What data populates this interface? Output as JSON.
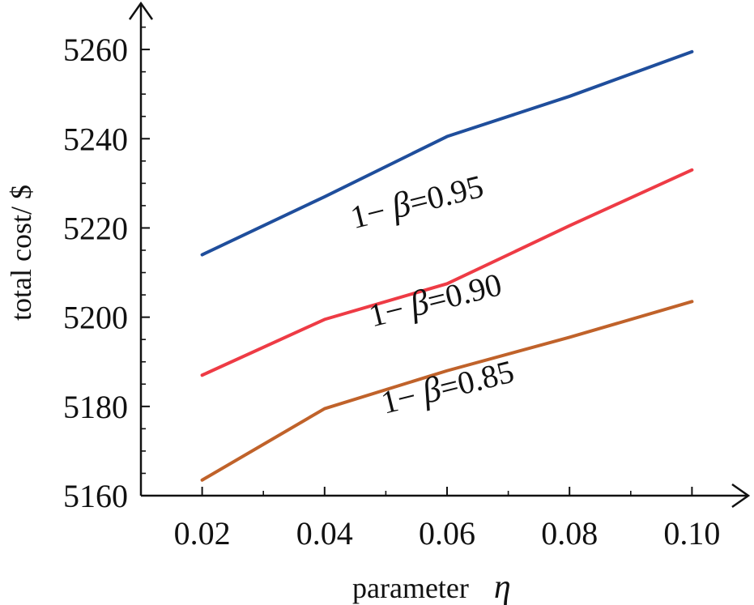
{
  "chart_data": {
    "type": "line",
    "title": "",
    "xlabel": "parameter",
    "xlabel_symbol": "η",
    "ylabel": "total cost/ $",
    "x": [
      0.02,
      0.04,
      0.06,
      0.08,
      0.1
    ],
    "x_tick_labels": [
      "0.02",
      "0.04",
      "0.06",
      "0.08",
      "0.10"
    ],
    "xlim": [
      0.01,
      0.11
    ],
    "ylim": [
      5160,
      5270
    ],
    "y_ticks": [
      5160,
      5180,
      5200,
      5220,
      5240,
      5260
    ],
    "y_tick_labels": [
      "5160",
      "5180",
      "5200",
      "5220",
      "5240",
      "5260"
    ],
    "grid": false,
    "legend": "inline labels",
    "series": [
      {
        "name": "1− β =0.95",
        "label_prefix": "1− ",
        "label_symbol": "β",
        "label_suffix": "=0.95",
        "color": "#1f4e9c",
        "values": [
          5214,
          5227,
          5240.5,
          5249.5,
          5259.5
        ]
      },
      {
        "name": "1− β =0.90",
        "label_prefix": "1− ",
        "label_symbol": "β",
        "label_suffix": "=0.90",
        "color": "#ee3b45",
        "values": [
          5187,
          5199.5,
          5207.5,
          5220.5,
          5233
        ]
      },
      {
        "name": "1− β =0.85",
        "label_prefix": "1− ",
        "label_symbol": "β",
        "label_suffix": "=0.85",
        "color": "#c0622a",
        "values": [
          5163.5,
          5179.5,
          5188,
          5195.5,
          5203.5
        ]
      }
    ]
  }
}
